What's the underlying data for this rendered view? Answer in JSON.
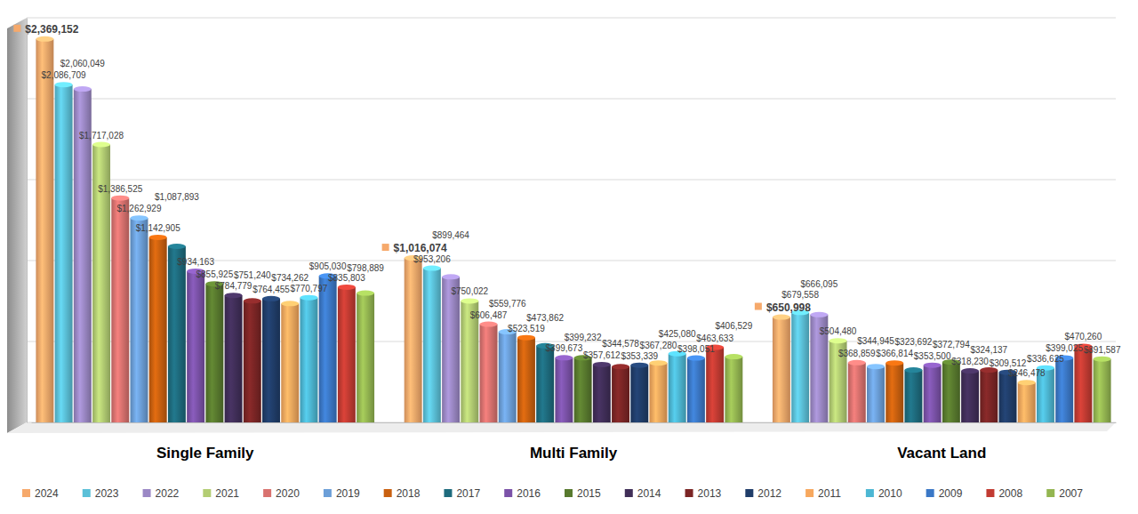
{
  "chart_data": {
    "type": "bar",
    "categories": [
      "Single Family",
      "Multi Family",
      "Vacant Land"
    ],
    "series": [
      {
        "name": "2024",
        "color": "#f6a96b",
        "values": [
          2369152,
          1016074,
          650998
        ],
        "value_labels": [
          "$2,369,152",
          "$1,016,074",
          "$650,998"
        ]
      },
      {
        "name": "2023",
        "color": "#5bc0d8",
        "values": [
          2086709,
          953206,
          679558
        ],
        "value_labels": [
          "$2,086,709",
          "$953,206",
          "$679,558"
        ]
      },
      {
        "name": "2022",
        "color": "#9b88c5",
        "values": [
          2060049,
          899464,
          666095
        ],
        "value_labels": [
          "$2,060,049",
          "$899,464",
          "$666,095"
        ]
      },
      {
        "name": "2021",
        "color": "#b3cd73",
        "values": [
          1717028,
          750022,
          504480
        ],
        "value_labels": [
          "$1,717,028",
          "$750,022",
          "$504,480"
        ]
      },
      {
        "name": "2020",
        "color": "#d9726f",
        "values": [
          1386525,
          606487,
          368859
        ],
        "value_labels": [
          "$1,386,525",
          "$606,487",
          "$368,859"
        ]
      },
      {
        "name": "2019",
        "color": "#6c9fd8",
        "values": [
          1262929,
          559776,
          344945
        ],
        "value_labels": [
          "$1,262,929",
          "$559,776",
          "$344,945"
        ]
      },
      {
        "name": "2018",
        "color": "#c9600f",
        "values": [
          1142905,
          523519,
          366814
        ],
        "value_labels": [
          "$1,142,905",
          "$523,519",
          "$366,814"
        ]
      },
      {
        "name": "2017",
        "color": "#1e6b7d",
        "values": [
          1087893,
          473862,
          323692
        ],
        "value_labels": [
          "$1,087,893",
          "$473,862",
          "$323,692"
        ]
      },
      {
        "name": "2016",
        "color": "#7b52a8",
        "values": [
          934163,
          399673,
          353500
        ],
        "value_labels": [
          "$934,163",
          "$399,673",
          "$353,500"
        ]
      },
      {
        "name": "2015",
        "color": "#587a2e",
        "values": [
          855925,
          399232,
          372794
        ],
        "value_labels": [
          "$855,925",
          "$399,232",
          "$372,794"
        ]
      },
      {
        "name": "2014",
        "color": "#402e58",
        "values": [
          784779,
          357612,
          318230
        ],
        "value_labels": [
          "$784,779",
          "$357,612",
          "$318,230"
        ]
      },
      {
        "name": "2013",
        "color": "#7b2525",
        "values": [
          751240,
          344578,
          324137
        ],
        "value_labels": [
          "$751,240",
          "$344,578",
          "$324,137"
        ]
      },
      {
        "name": "2012",
        "color": "#203d69",
        "values": [
          764455,
          353339,
          309512
        ],
        "value_labels": [
          "$764,455",
          "$353,339",
          "$309,512"
        ]
      },
      {
        "name": "2011",
        "color": "#f7a85e",
        "values": [
          734262,
          367280,
          246478
        ],
        "value_labels": [
          "$734,262",
          "$367,280",
          "$246,478"
        ]
      },
      {
        "name": "2010",
        "color": "#4db7d3",
        "values": [
          770797,
          425080,
          336625
        ],
        "value_labels": [
          "$770,797",
          "$425,080",
          "$336,625"
        ]
      },
      {
        "name": "2009",
        "color": "#3b78c6",
        "values": [
          905030,
          398051,
          399025
        ],
        "value_labels": [
          "$905,030",
          "$398,051",
          "$399,025"
        ]
      },
      {
        "name": "2008",
        "color": "#c23b32",
        "values": [
          835803,
          463633,
          470260
        ],
        "value_labels": [
          "$835,803",
          "$463,633",
          "$470,260"
        ]
      },
      {
        "name": "2007",
        "color": "#94b651",
        "values": [
          798889,
          406529,
          391587
        ],
        "value_labels": [
          "$798,889",
          "$406,529",
          "$391,587"
        ]
      }
    ],
    "ylim": [
      0,
      2500000
    ],
    "yticks": [
      0,
      500000,
      1000000,
      1500000,
      2000000,
      2500000
    ],
    "grid": true,
    "data_labels": true,
    "tick_labels": "x",
    "legend": "bottom"
  }
}
